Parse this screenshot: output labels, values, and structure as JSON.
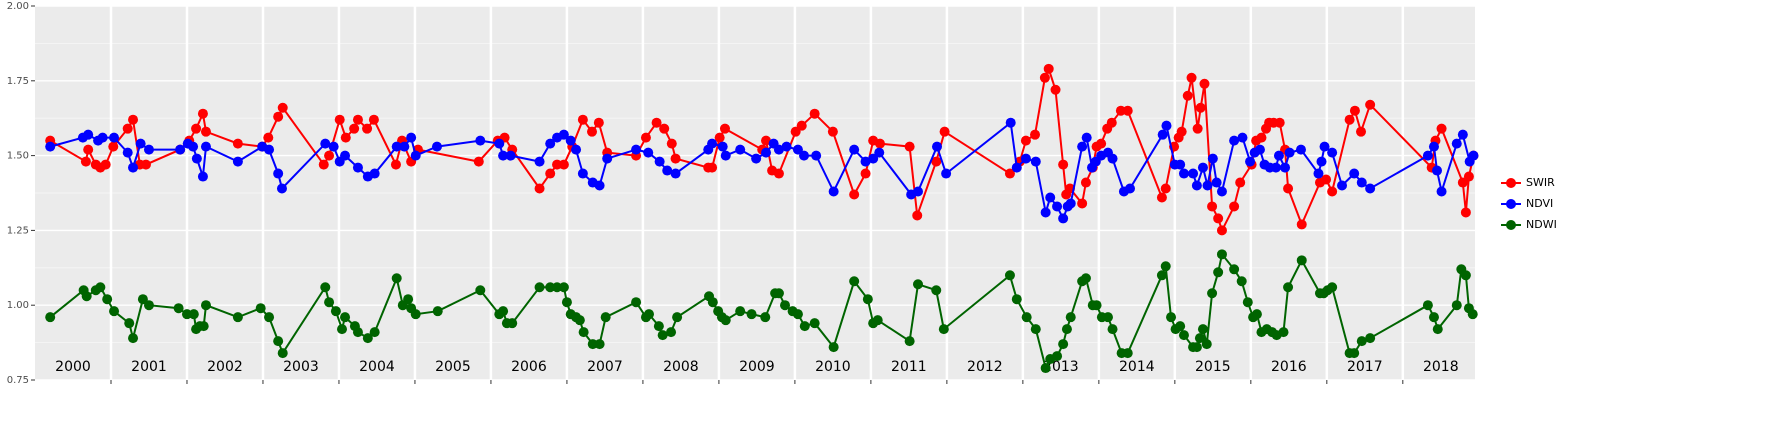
{
  "chart_data": {
    "type": "line",
    "xlim": [
      2000,
      2018.95
    ],
    "ylim": [
      0.75,
      2.0
    ],
    "yticks": [
      {
        "value": 0.75,
        "label": "0.75"
      },
      {
        "value": 1.0,
        "label": "1.00"
      },
      {
        "value": 1.25,
        "label": "1.25"
      },
      {
        "value": 1.5,
        "label": "1.50"
      },
      {
        "value": 1.75,
        "label": "1.75"
      },
      {
        "value": 2.0,
        "label": "2.00"
      }
    ],
    "xticks": [
      2001,
      2002,
      2003,
      2004,
      2005,
      2006,
      2007,
      2008,
      2009,
      2010,
      2011,
      2012,
      2013,
      2014,
      2015,
      2016,
      2017,
      2018
    ],
    "period_labels": [
      {
        "value": 2000.5,
        "label": "2000"
      },
      {
        "value": 2001.5,
        "label": "2001"
      },
      {
        "value": 2002.5,
        "label": "2002"
      },
      {
        "value": 2003.5,
        "label": "2003"
      },
      {
        "value": 2004.5,
        "label": "2004"
      },
      {
        "value": 2005.5,
        "label": "2005"
      },
      {
        "value": 2006.5,
        "label": "2006"
      },
      {
        "value": 2007.5,
        "label": "2007"
      },
      {
        "value": 2008.5,
        "label": "2008"
      },
      {
        "value": 2009.5,
        "label": "2009"
      },
      {
        "value": 2010.5,
        "label": "2010"
      },
      {
        "value": 2011.5,
        "label": "2011"
      },
      {
        "value": 2012.5,
        "label": "2012"
      },
      {
        "value": 2013.5,
        "label": "2013"
      },
      {
        "value": 2014.5,
        "label": "2014"
      },
      {
        "value": 2015.5,
        "label": "2015"
      },
      {
        "value": 2016.5,
        "label": "2016"
      },
      {
        "value": 2017.5,
        "label": "2017"
      },
      {
        "value": 2018.5,
        "label": "2018"
      }
    ],
    "grid": true,
    "legend": "right",
    "series": [
      {
        "name": "SWIR",
        "color": "#ff0000",
        "x": [
          2000.2,
          2000.67,
          2000.7,
          2000.8,
          2000.86,
          2000.93,
          2001.03,
          2001.22,
          2001.29,
          2001.38,
          2001.46,
          2001.91,
          2002.03,
          2002.12,
          2002.21,
          2002.25,
          2002.67,
          2002.99,
          2003.07,
          2003.2,
          2003.26,
          2003.8,
          2003.87,
          2004.01,
          2004.09,
          2004.2,
          2004.25,
          2004.37,
          2004.46,
          2004.75,
          2004.83,
          2004.95,
          2005.04,
          2005.84,
          2006.09,
          2006.18,
          2006.28,
          2006.64,
          2006.78,
          2006.87,
          2006.96,
          2007.07,
          2007.21,
          2007.33,
          2007.42,
          2007.53,
          2007.91,
          2008.04,
          2008.18,
          2008.28,
          2008.38,
          2008.43,
          2008.86,
          2008.91,
          2009.01,
          2009.08,
          2009.57,
          2009.62,
          2009.7,
          2009.79,
          2010.01,
          2010.09,
          2010.26,
          2010.5,
          2010.78,
          2010.93,
          2011.03,
          2011.12,
          2011.51,
          2011.61,
          2011.86,
          2011.97,
          2012.83,
          2012.96,
          2013.04,
          2013.16,
          2013.29,
          2013.34,
          2013.43,
          2013.53,
          2013.57,
          2013.62,
          2013.78,
          2013.83,
          2013.92,
          2013.97,
          2014.03,
          2014.11,
          2014.17,
          2014.29,
          2014.38,
          2014.83,
          2014.88,
          2014.99,
          2015.05,
          2015.09,
          2015.17,
          2015.22,
          2015.3,
          2015.34,
          2015.39,
          2015.49,
          2015.57,
          2015.62,
          2015.78,
          2015.86,
          2016.01,
          2016.07,
          2016.14,
          2016.2,
          2016.24,
          2016.3,
          2016.38,
          2016.45,
          2016.49,
          2016.67,
          2016.91,
          2016.99,
          2017.07,
          2017.3,
          2017.37,
          2017.45,
          2017.57,
          2018.38,
          2018.43,
          2018.51,
          2018.79,
          2018.83,
          2018.87,
          2018.93
        ],
        "values": [
          1.55,
          1.48,
          1.52,
          1.47,
          1.46,
          1.47,
          1.53,
          1.59,
          1.62,
          1.47,
          1.47,
          1.52,
          1.55,
          1.59,
          1.64,
          1.58,
          1.54,
          1.53,
          1.56,
          1.63,
          1.66,
          1.47,
          1.5,
          1.62,
          1.56,
          1.59,
          1.62,
          1.59,
          1.62,
          1.47,
          1.55,
          1.48,
          1.52,
          1.48,
          1.55,
          1.56,
          1.52,
          1.39,
          1.44,
          1.47,
          1.47,
          1.53,
          1.62,
          1.58,
          1.61,
          1.51,
          1.5,
          1.56,
          1.61,
          1.59,
          1.54,
          1.49,
          1.46,
          1.46,
          1.56,
          1.59,
          1.52,
          1.55,
          1.45,
          1.44,
          1.58,
          1.6,
          1.64,
          1.58,
          1.37,
          1.44,
          1.55,
          1.54,
          1.53,
          1.3,
          1.48,
          1.58,
          1.44,
          1.48,
          1.55,
          1.57,
          1.76,
          1.79,
          1.72,
          1.47,
          1.37,
          1.39,
          1.34,
          1.41,
          1.46,
          1.53,
          1.54,
          1.59,
          1.61,
          1.65,
          1.65,
          1.36,
          1.39,
          1.53,
          1.56,
          1.58,
          1.7,
          1.76,
          1.59,
          1.66,
          1.74,
          1.33,
          1.29,
          1.25,
          1.33,
          1.41,
          1.47,
          1.55,
          1.56,
          1.59,
          1.61,
          1.61,
          1.61,
          1.52,
          1.39,
          1.27,
          1.41,
          1.42,
          1.38,
          1.62,
          1.65,
          1.58,
          1.67,
          1.46,
          1.55,
          1.59,
          1.41,
          1.31,
          1.43,
          1.5
        ]
      },
      {
        "name": "NDVI",
        "color": "#0000ff",
        "x": [
          2000.2,
          2000.63,
          2000.7,
          2000.83,
          2000.89,
          2001.04,
          2001.22,
          2001.29,
          2001.39,
          2001.5,
          2001.91,
          2002.01,
          2002.08,
          2002.13,
          2002.21,
          2002.25,
          2002.67,
          2002.99,
          2003.08,
          2003.2,
          2003.25,
          2003.82,
          2003.93,
          2004.01,
          2004.08,
          2004.25,
          2004.38,
          2004.47,
          2004.76,
          2004.86,
          2004.95,
          2005.01,
          2005.29,
          2005.86,
          2006.11,
          2006.16,
          2006.26,
          2006.64,
          2006.78,
          2006.87,
          2006.96,
          2007.05,
          2007.12,
          2007.21,
          2007.34,
          2007.43,
          2007.53,
          2007.91,
          2008.07,
          2008.22,
          2008.32,
          2008.43,
          2008.86,
          2008.91,
          2009.05,
          2009.09,
          2009.28,
          2009.49,
          2009.62,
          2009.72,
          2009.79,
          2009.89,
          2010.04,
          2010.12,
          2010.28,
          2010.51,
          2010.78,
          2010.93,
          2011.03,
          2011.11,
          2011.53,
          2011.62,
          2011.87,
          2011.99,
          2012.84,
          2012.92,
          2013.04,
          2013.17,
          2013.3,
          2013.36,
          2013.45,
          2013.53,
          2013.59,
          2013.63,
          2013.78,
          2013.84,
          2013.91,
          2013.96,
          2014.03,
          2014.12,
          2014.18,
          2014.33,
          2014.41,
          2014.84,
          2014.89,
          2015.0,
          2015.07,
          2015.12,
          2015.24,
          2015.29,
          2015.37,
          2015.43,
          2015.5,
          2015.55,
          2015.62,
          2015.78,
          2015.89,
          2015.99,
          2016.05,
          2016.12,
          2016.18,
          2016.25,
          2016.33,
          2016.37,
          2016.45,
          2016.51,
          2016.66,
          2016.89,
          2016.93,
          2016.97,
          2017.07,
          2017.2,
          2017.36,
          2017.46,
          2017.57,
          2018.33,
          2018.41,
          2018.45,
          2018.51,
          2018.71,
          2018.79,
          2018.88,
          2018.93
        ],
        "values": [
          1.53,
          1.56,
          1.57,
          1.55,
          1.56,
          1.56,
          1.51,
          1.46,
          1.54,
          1.52,
          1.52,
          1.54,
          1.53,
          1.49,
          1.43,
          1.53,
          1.48,
          1.53,
          1.52,
          1.44,
          1.39,
          1.54,
          1.53,
          1.48,
          1.5,
          1.46,
          1.43,
          1.44,
          1.53,
          1.53,
          1.56,
          1.5,
          1.53,
          1.55,
          1.54,
          1.5,
          1.5,
          1.48,
          1.54,
          1.56,
          1.57,
          1.55,
          1.52,
          1.44,
          1.41,
          1.4,
          1.49,
          1.52,
          1.51,
          1.48,
          1.45,
          1.44,
          1.52,
          1.54,
          1.53,
          1.5,
          1.52,
          1.49,
          1.51,
          1.54,
          1.52,
          1.53,
          1.52,
          1.5,
          1.5,
          1.38,
          1.52,
          1.48,
          1.49,
          1.51,
          1.37,
          1.38,
          1.53,
          1.44,
          1.61,
          1.46,
          1.49,
          1.48,
          1.31,
          1.36,
          1.33,
          1.29,
          1.33,
          1.34,
          1.53,
          1.56,
          1.46,
          1.48,
          1.5,
          1.51,
          1.49,
          1.38,
          1.39,
          1.57,
          1.6,
          1.47,
          1.47,
          1.44,
          1.44,
          1.4,
          1.46,
          1.4,
          1.49,
          1.41,
          1.38,
          1.55,
          1.56,
          1.48,
          1.51,
          1.52,
          1.47,
          1.46,
          1.46,
          1.5,
          1.46,
          1.51,
          1.52,
          1.44,
          1.48,
          1.53,
          1.51,
          1.4,
          1.44,
          1.41,
          1.39,
          1.5,
          1.53,
          1.45,
          1.38,
          1.54,
          1.57,
          1.48,
          1.5
        ]
      },
      {
        "name": "NDWI",
        "color": "#006400",
        "x": [
          2000.2,
          2000.64,
          2000.68,
          2000.8,
          2000.86,
          2000.95,
          2001.04,
          2001.24,
          2001.29,
          2001.42,
          2001.5,
          2001.89,
          2002.0,
          2002.09,
          2002.12,
          2002.17,
          2002.22,
          2002.25,
          2002.67,
          2002.97,
          2003.08,
          2003.2,
          2003.26,
          2003.82,
          2003.87,
          2003.96,
          2004.04,
          2004.08,
          2004.21,
          2004.25,
          2004.38,
          2004.47,
          2004.76,
          2004.84,
          2004.91,
          2004.95,
          2005.01,
          2005.3,
          2005.86,
          2006.11,
          2006.16,
          2006.21,
          2006.28,
          2006.64,
          2006.78,
          2006.87,
          2006.96,
          2007.0,
          2007.05,
          2007.12,
          2007.17,
          2007.22,
          2007.34,
          2007.43,
          2007.51,
          2007.91,
          2008.04,
          2008.08,
          2008.21,
          2008.26,
          2008.37,
          2008.45,
          2008.87,
          2008.92,
          2008.99,
          2009.04,
          2009.09,
          2009.28,
          2009.43,
          2009.61,
          2009.74,
          2009.79,
          2009.87,
          2009.97,
          2010.04,
          2010.13,
          2010.26,
          2010.51,
          2010.78,
          2010.96,
          2011.03,
          2011.09,
          2011.51,
          2011.62,
          2011.86,
          2011.96,
          2012.83,
          2012.92,
          2013.05,
          2013.17,
          2013.3,
          2013.36,
          2013.45,
          2013.53,
          2013.58,
          2013.63,
          2013.78,
          2013.83,
          2013.92,
          2013.97,
          2014.04,
          2014.12,
          2014.18,
          2014.3,
          2014.38,
          2014.83,
          2014.88,
          2014.95,
          2015.01,
          2015.07,
          2015.12,
          2015.24,
          2015.29,
          2015.33,
          2015.37,
          2015.42,
          2015.49,
          2015.57,
          2015.62,
          2015.78,
          2015.88,
          2015.96,
          2016.03,
          2016.08,
          2016.14,
          2016.21,
          2016.28,
          2016.34,
          2016.43,
          2016.49,
          2016.67,
          2016.91,
          2016.96,
          2017.01,
          2017.07,
          2017.3,
          2017.36,
          2017.46,
          2017.57,
          2018.33,
          2018.41,
          2018.46,
          2018.71,
          2018.77,
          2018.83,
          2018.87,
          2018.92
        ],
        "values": [
          0.96,
          1.05,
          1.03,
          1.05,
          1.06,
          1.02,
          0.98,
          0.94,
          0.89,
          1.02,
          1.0,
          0.99,
          0.97,
          0.97,
          0.92,
          0.93,
          0.93,
          1.0,
          0.96,
          0.99,
          0.96,
          0.88,
          0.84,
          1.06,
          1.01,
          0.98,
          0.92,
          0.96,
          0.93,
          0.91,
          0.89,
          0.91,
          1.09,
          1.0,
          1.02,
          0.99,
          0.97,
          0.98,
          1.05,
          0.97,
          0.98,
          0.94,
          0.94,
          1.06,
          1.06,
          1.06,
          1.06,
          1.01,
          0.97,
          0.96,
          0.95,
          0.91,
          0.87,
          0.87,
          0.96,
          1.01,
          0.96,
          0.97,
          0.93,
          0.9,
          0.91,
          0.96,
          1.03,
          1.01,
          0.98,
          0.96,
          0.95,
          0.98,
          0.97,
          0.96,
          1.04,
          1.04,
          1.0,
          0.98,
          0.97,
          0.93,
          0.94,
          0.86,
          1.08,
          1.02,
          0.94,
          0.95,
          0.88,
          1.07,
          1.05,
          0.92,
          1.1,
          1.02,
          0.96,
          0.92,
          0.79,
          0.82,
          0.83,
          0.87,
          0.92,
          0.96,
          1.08,
          1.09,
          1.0,
          1.0,
          0.96,
          0.96,
          0.92,
          0.84,
          0.84,
          1.1,
          1.13,
          0.96,
          0.92,
          0.93,
          0.9,
          0.86,
          0.86,
          0.89,
          0.92,
          0.87,
          1.04,
          1.11,
          1.17,
          1.12,
          1.08,
          1.01,
          0.96,
          0.97,
          0.91,
          0.92,
          0.91,
          0.9,
          0.91,
          1.06,
          1.15,
          1.04,
          1.04,
          1.05,
          1.06,
          0.84,
          0.84,
          0.88,
          0.89,
          1.0,
          0.96,
          0.92,
          1.0,
          1.12,
          1.1,
          0.99,
          0.97
        ]
      }
    ]
  }
}
